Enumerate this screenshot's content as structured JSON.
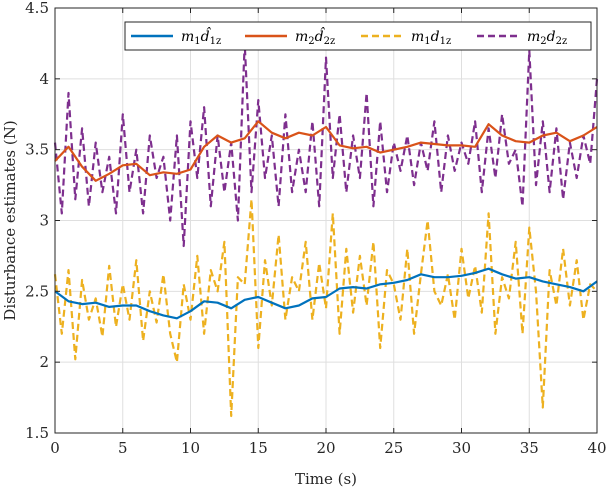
{
  "chart_data": {
    "type": "line",
    "title": "",
    "xlabel": "Time (s)",
    "ylabel": "Disturbance estimates (N)",
    "xlim": [
      0,
      40
    ],
    "ylim": [
      1.5,
      4.5
    ],
    "xticks": [
      "0",
      "5",
      "10",
      "15",
      "20",
      "25",
      "30",
      "35",
      "40"
    ],
    "yticks": [
      "1.5",
      "2",
      "2.5",
      "3",
      "3.5",
      "4",
      "4.5"
    ],
    "grid": true,
    "legend_position": "top",
    "series": [
      {
        "name": "m1d̂1z",
        "legend": {
          "coef": "m",
          "coef_sub": "1",
          "sym": "d̂",
          "sub": "1z"
        },
        "color": "#0072BD",
        "style": "solid",
        "x": [
          0,
          1,
          2,
          3,
          4,
          5,
          6,
          7,
          8,
          9,
          10,
          11,
          12,
          13,
          14,
          15,
          16,
          17,
          18,
          19,
          20,
          21,
          22,
          23,
          24,
          25,
          26,
          27,
          28,
          29,
          30,
          31,
          32,
          33,
          34,
          35,
          36,
          37,
          38,
          39,
          40
        ],
        "values": [
          2.5,
          2.43,
          2.41,
          2.42,
          2.39,
          2.4,
          2.4,
          2.36,
          2.33,
          2.31,
          2.36,
          2.43,
          2.42,
          2.38,
          2.44,
          2.46,
          2.42,
          2.38,
          2.4,
          2.45,
          2.46,
          2.52,
          2.53,
          2.52,
          2.55,
          2.56,
          2.58,
          2.62,
          2.6,
          2.6,
          2.61,
          2.63,
          2.66,
          2.62,
          2.59,
          2.6,
          2.57,
          2.55,
          2.53,
          2.5,
          2.57
        ]
      },
      {
        "name": "m2d̂2z",
        "legend": {
          "coef": "m",
          "coef_sub": "2",
          "sym": "d̂",
          "sub": "2z"
        },
        "color": "#D95319",
        "style": "solid",
        "x": [
          0,
          1,
          2,
          3,
          4,
          5,
          6,
          7,
          8,
          9,
          10,
          11,
          12,
          13,
          14,
          15,
          16,
          17,
          18,
          19,
          20,
          21,
          22,
          23,
          24,
          25,
          26,
          27,
          28,
          29,
          30,
          31,
          32,
          33,
          34,
          35,
          36,
          37,
          38,
          39,
          40
        ],
        "values": [
          3.42,
          3.52,
          3.38,
          3.28,
          3.33,
          3.39,
          3.4,
          3.32,
          3.34,
          3.33,
          3.36,
          3.52,
          3.6,
          3.55,
          3.58,
          3.7,
          3.62,
          3.58,
          3.62,
          3.6,
          3.66,
          3.53,
          3.51,
          3.52,
          3.48,
          3.5,
          3.52,
          3.55,
          3.54,
          3.53,
          3.53,
          3.52,
          3.68,
          3.6,
          3.56,
          3.55,
          3.6,
          3.62,
          3.56,
          3.6,
          3.66
        ]
      },
      {
        "name": "m1d1z",
        "legend": {
          "coef": "m",
          "coef_sub": "1",
          "sym": "d",
          "sub": "1z"
        },
        "color": "#EDB120",
        "style": "dashed",
        "x": [
          0,
          0.5,
          1,
          1.5,
          2,
          2.5,
          3,
          3.5,
          4,
          4.5,
          5,
          5.5,
          6,
          6.5,
          7,
          7.5,
          8,
          8.5,
          9,
          9.5,
          10,
          10.5,
          11,
          11.5,
          12,
          12.5,
          13,
          13.5,
          14,
          14.5,
          15,
          15.5,
          16,
          16.5,
          17,
          17.5,
          18,
          18.5,
          19,
          19.5,
          20,
          20.5,
          21,
          21.5,
          22,
          22.5,
          23,
          23.5,
          24,
          24.5,
          25,
          25.5,
          26,
          26.5,
          27,
          27.5,
          28,
          28.5,
          29,
          29.5,
          30,
          30.5,
          31,
          31.5,
          32,
          32.5,
          33,
          33.5,
          34,
          34.5,
          35,
          35.5,
          36,
          36.5,
          37,
          37.5,
          38,
          38.5,
          39,
          39.5,
          40
        ],
        "values": [
          2.62,
          2.2,
          2.65,
          2.02,
          2.58,
          2.3,
          2.45,
          2.18,
          2.68,
          2.25,
          2.55,
          2.3,
          2.72,
          2.15,
          2.5,
          2.28,
          2.62,
          2.2,
          2.0,
          2.55,
          2.3,
          2.75,
          2.2,
          2.65,
          2.5,
          2.85,
          1.62,
          2.6,
          2.55,
          3.15,
          2.1,
          2.72,
          2.4,
          2.9,
          2.3,
          2.6,
          2.5,
          2.85,
          2.3,
          2.7,
          2.38,
          3.05,
          2.2,
          2.8,
          2.35,
          2.75,
          2.4,
          2.85,
          2.1,
          2.65,
          2.55,
          2.3,
          2.8,
          2.2,
          2.62,
          3.0,
          2.5,
          2.4,
          2.62,
          2.3,
          2.8,
          2.45,
          2.68,
          2.35,
          3.05,
          2.2,
          2.6,
          2.45,
          2.85,
          2.2,
          2.95,
          2.5,
          1.68,
          2.65,
          2.4,
          2.8,
          2.4,
          2.72,
          2.3,
          2.55,
          2.5
        ]
      },
      {
        "name": "m2d2z",
        "legend": {
          "coef": "m",
          "coef_sub": "2",
          "sym": "d",
          "sub": "2z"
        },
        "color": "#7E2F8E",
        "style": "dashed",
        "x": [
          0,
          0.5,
          1,
          1.5,
          2,
          2.5,
          3,
          3.5,
          4,
          4.5,
          5,
          5.5,
          6,
          6.5,
          7,
          7.5,
          8,
          8.5,
          9,
          9.5,
          10,
          10.5,
          11,
          11.5,
          12,
          12.5,
          13,
          13.5,
          14,
          14.5,
          15,
          15.5,
          16,
          16.5,
          17,
          17.5,
          18,
          18.5,
          19,
          19.5,
          20,
          20.5,
          21,
          21.5,
          22,
          22.5,
          23,
          23.5,
          24,
          24.5,
          25,
          25.5,
          26,
          26.5,
          27,
          27.5,
          28,
          28.5,
          29,
          29.5,
          30,
          30.5,
          31,
          31.5,
          32,
          32.5,
          33,
          33.5,
          34,
          34.5,
          35,
          35.5,
          36,
          36.5,
          37,
          37.5,
          38,
          38.5,
          39,
          39.5,
          40
        ],
        "values": [
          3.55,
          3.05,
          3.9,
          3.15,
          3.65,
          3.1,
          3.55,
          3.2,
          3.45,
          3.05,
          3.75,
          3.2,
          3.5,
          3.05,
          3.6,
          3.3,
          3.45,
          3.0,
          3.6,
          2.82,
          3.7,
          3.3,
          3.8,
          3.1,
          3.6,
          3.2,
          3.55,
          3.0,
          4.25,
          3.2,
          3.85,
          3.3,
          3.6,
          3.1,
          3.75,
          3.2,
          3.5,
          3.2,
          3.7,
          3.1,
          4.15,
          3.3,
          3.75,
          3.2,
          3.6,
          3.3,
          3.9,
          3.1,
          3.7,
          3.2,
          3.55,
          3.35,
          3.6,
          3.25,
          3.55,
          3.35,
          3.7,
          3.2,
          3.6,
          3.35,
          3.55,
          3.4,
          3.7,
          3.2,
          3.65,
          3.3,
          3.75,
          3.4,
          3.5,
          3.1,
          4.2,
          3.25,
          3.7,
          3.2,
          3.65,
          3.15,
          3.55,
          3.3,
          3.6,
          3.4,
          4.0
        ]
      }
    ]
  }
}
